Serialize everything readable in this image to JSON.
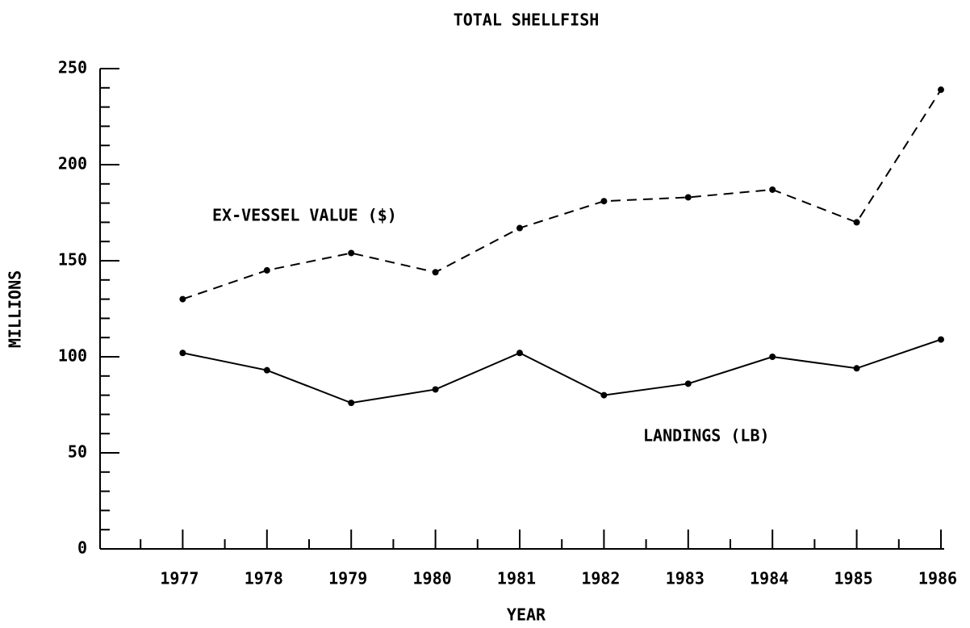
{
  "chart_data": {
    "type": "line",
    "title": "TOTAL SHELLFISH",
    "x_label": "YEAR",
    "y_label": "MILLIONS",
    "x": [
      1977,
      1978,
      1979,
      1980,
      1981,
      1982,
      1983,
      1984,
      1985,
      1986
    ],
    "series": [
      {
        "name": "EX-VESSEL VALUE ($)",
        "color": "#000000",
        "line_style": "dashed",
        "values": [
          130,
          145,
          154,
          144,
          167,
          181,
          183,
          187,
          170,
          239
        ]
      },
      {
        "name": "LANDINGS (LB)",
        "color": "#000000",
        "line_style": "solid",
        "values": [
          102,
          93,
          76,
          83,
          102,
          80,
          86,
          100,
          94,
          109
        ]
      }
    ],
    "xlim": [
      1976,
      1986
    ],
    "xticks": [
      1977,
      1978,
      1979,
      1980,
      1981,
      1982,
      1983,
      1984,
      1985,
      1986
    ],
    "xminor_ticks": [
      1976.5,
      1977.5,
      1978.5,
      1979.5,
      1980.5,
      1981.5,
      1982.5,
      1983.5,
      1984.5,
      1985.5
    ],
    "ylim": [
      0,
      250
    ],
    "yticks": [
      0,
      50,
      100,
      150,
      200,
      250
    ],
    "yminor_ticks": [
      10,
      20,
      30,
      40,
      60,
      70,
      80,
      90,
      110,
      120,
      130,
      140,
      160,
      170,
      180,
      190,
      210,
      220,
      230,
      240
    ],
    "grid": false
  }
}
